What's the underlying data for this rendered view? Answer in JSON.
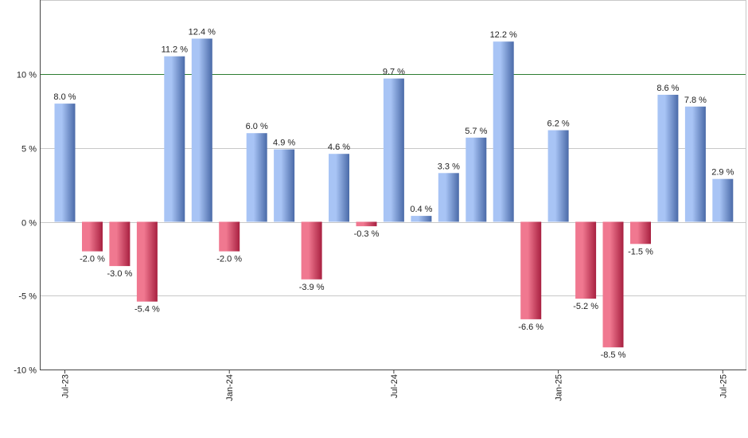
{
  "chart_data": {
    "type": "bar",
    "title": "",
    "xlabel": "",
    "ylabel": "",
    "ylim": [
      -10,
      15
    ],
    "yticks": [
      -10,
      -5,
      0,
      5,
      10
    ],
    "ytick_labels": [
      "-10 %",
      "-5 %",
      "0 %",
      "5 %",
      "10 %"
    ],
    "reference_line": 10,
    "grid": true,
    "value_suffix": " %",
    "categories": [
      "2023-07",
      "2023-08",
      "2023-09",
      "2023-10",
      "2023-11",
      "2023-12",
      "2024-01",
      "2024-02",
      "2024-03",
      "2024-04",
      "2024-05",
      "2024-06",
      "2024-07",
      "2024-08",
      "2024-09",
      "2024-10",
      "2024-11",
      "2024-12",
      "2025-01",
      "2025-02",
      "2025-03",
      "2025-04",
      "2025-05",
      "2025-06",
      "2025-07"
    ],
    "values": [
      8.0,
      -2.0,
      -3.0,
      -5.4,
      11.2,
      12.4,
      -2.0,
      6.0,
      4.9,
      -3.9,
      4.6,
      -0.3,
      9.7,
      0.4,
      3.3,
      5.7,
      12.2,
      -6.6,
      6.2,
      -5.2,
      -8.5,
      -1.5,
      8.6,
      7.8,
      2.9
    ],
    "value_labels": [
      "8.0 %",
      "-2.0 %",
      "-3.0 %",
      "-5.4 %",
      "11.2 %",
      "12.4 %",
      "-2.0 %",
      "6.0 %",
      "4.9 %",
      "-3.9 %",
      "4.6 %",
      "-0.3 %",
      "9.7 %",
      "0.4 %",
      "3.3 %",
      "5.7 %",
      "12.2 %",
      "-6.6 %",
      "6.2 %",
      "-5.2 %",
      "-8.5 %",
      "-1.5 %",
      "8.6 %",
      "7.8 %",
      "2.9 %"
    ],
    "x_tick_labels": [
      {
        "index": 0,
        "label": "Jul-23"
      },
      {
        "index": 6,
        "label": "Jan-24"
      },
      {
        "index": 12,
        "label": "Jul-24"
      },
      {
        "index": 18,
        "label": "Jan-25"
      },
      {
        "index": 24,
        "label": "Jul-25"
      }
    ],
    "colors": {
      "positive_light": "#a8c4f5",
      "positive_dark": "#4a6aa8",
      "negative_light": "#f07890",
      "negative_dark": "#a82040",
      "reference_line": "#2e7d32",
      "grid": "#c8c8c8",
      "axis": "#444444"
    }
  }
}
